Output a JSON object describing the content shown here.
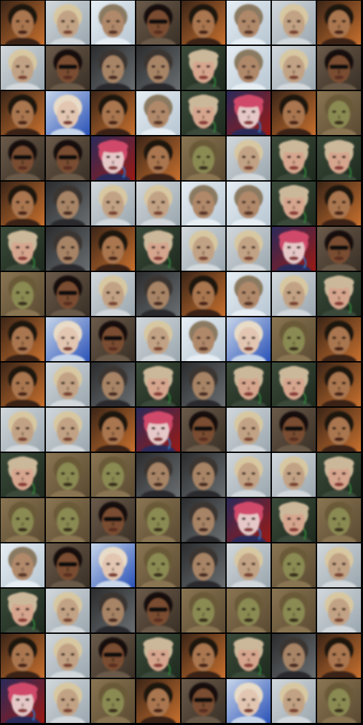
{
  "grid": {
    "rows": 16,
    "cols": 8,
    "gutter_color": "#000000"
  },
  "palettes": {
    "orange": {
      "bg": "#c7702e",
      "bg2": "#3a2417",
      "skin": "#a9764f",
      "hair": "#1b120c",
      "eye": "#2b1a10",
      "mouth": "#4a2219",
      "accent": ""
    },
    "sky": {
      "bg": "#b7c6d2",
      "bg2": "#e6eef4",
      "skin": "#b0886a",
      "hair": "#8a7a62",
      "eye": "#3a2c22",
      "mouth": "#5a3428",
      "accent": ""
    },
    "olive": {
      "bg": "#5a4a32",
      "bg2": "#8a7552",
      "skin": "#8a8a52",
      "hair": "#6a5a38",
      "eye": "#2e2a18",
      "mouth": "#3a2e1a",
      "accent": ""
    },
    "hatwoman": {
      "bg": "#1e2a1e",
      "bg2": "#3a4a3a",
      "skin": "#d6a58e",
      "hair": "#cbb89a",
      "eye": "#3a241a",
      "mouth": "#8a3a34",
      "accent": "#2e8a3a"
    },
    "redhat": {
      "bg": "#9a1a14",
      "bg2": "#2a2a5a",
      "skin": "#e6c8c8",
      "hair": "#d04a6a",
      "eye": "#3a2a2a",
      "mouth": "#8a3a3a",
      "accent": "#2a7acc"
    },
    "sunglasses": {
      "bg": "#3a3026",
      "bg2": "#6a5a4a",
      "skin": "#7a4e32",
      "hair": "#141010",
      "eye": "#0a0a0a",
      "mouth": "#5a2e22",
      "accent": "#0a0a0a"
    },
    "blue": {
      "bg": "#2a52b8",
      "bg2": "#c8d6ea",
      "skin": "#e2c6b2",
      "hair": "#e8dcc8",
      "eye": "#3a2a22",
      "mouth": "#7a3a32",
      "accent": ""
    },
    "blonde": {
      "bg": "#9aa6ae",
      "bg2": "#d2d8dc",
      "skin": "#c2a284",
      "hair": "#d8c8a2",
      "eye": "#3a2a1e",
      "mouth": "#7a4232",
      "accent": ""
    },
    "grey": {
      "bg": "#6a6e70",
      "bg2": "#2a2c2e",
      "skin": "#a88466",
      "hair": "#3a3530",
      "eye": "#2a1e18",
      "mouth": "#4a2a22",
      "accent": ""
    }
  },
  "tiles": [
    [
      "orange",
      "blonde",
      "sky",
      "sunglasses",
      "orange",
      "sky",
      "blonde",
      "orange"
    ],
    [
      "blonde",
      "sunglasses",
      "grey",
      "grey",
      "hatwoman",
      "sky",
      "blonde",
      "sunglasses"
    ],
    [
      "orange",
      "blue",
      "orange",
      "sky",
      "hatwoman",
      "redhat",
      "orange",
      "olive"
    ],
    [
      "sunglasses",
      "sunglasses",
      "redhat",
      "orange",
      "olive",
      "blonde",
      "hatwoman",
      "hatwoman"
    ],
    [
      "orange",
      "grey",
      "blonde",
      "blonde",
      "sky",
      "sky",
      "hatwoman",
      "orange"
    ],
    [
      "hatwoman",
      "grey",
      "orange",
      "hatwoman",
      "blonde",
      "blonde",
      "redhat",
      "sunglasses"
    ],
    [
      "olive",
      "sunglasses",
      "blonde",
      "grey",
      "orange",
      "sky",
      "blonde",
      "hatwoman"
    ],
    [
      "orange",
      "blue",
      "sunglasses",
      "blonde",
      "sky",
      "blue",
      "olive",
      "orange"
    ],
    [
      "orange",
      "blonde",
      "grey",
      "hatwoman",
      "grey",
      "hatwoman",
      "hatwoman",
      "orange"
    ],
    [
      "blonde",
      "blonde",
      "orange",
      "redhat",
      "sunglasses",
      "blonde",
      "sunglasses",
      "orange"
    ],
    [
      "hatwoman",
      "olive",
      "olive",
      "grey",
      "grey",
      "blonde",
      "blonde",
      "hatwoman"
    ],
    [
      "olive",
      "olive",
      "sunglasses",
      "olive",
      "grey",
      "redhat",
      "hatwoman",
      "olive"
    ],
    [
      "sky",
      "sunglasses",
      "blue",
      "olive",
      "grey",
      "blonde",
      "olive",
      "blonde"
    ],
    [
      "hatwoman",
      "blonde",
      "grey",
      "sunglasses",
      "olive",
      "olive",
      "olive",
      "blonde"
    ],
    [
      "orange",
      "blonde",
      "sunglasses",
      "hatwoman",
      "orange",
      "hatwoman",
      "grey",
      "orange"
    ],
    [
      "redhat",
      "blonde",
      "olive",
      "orange",
      "sunglasses",
      "blue",
      "blonde",
      "olive"
    ]
  ]
}
